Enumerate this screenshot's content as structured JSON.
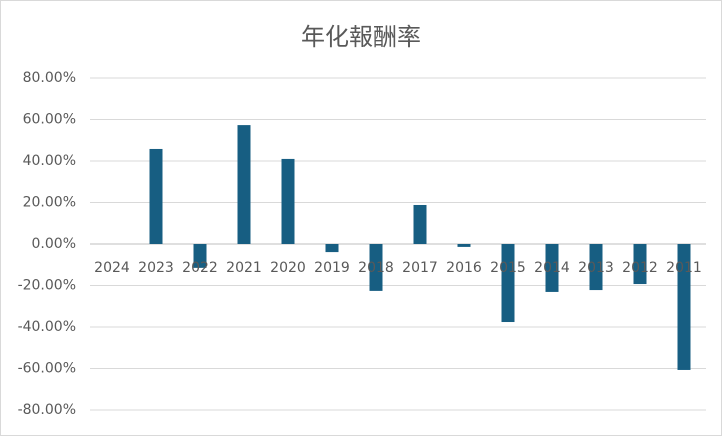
{
  "chart_data": {
    "type": "bar",
    "title": "年化報酬率",
    "categories": [
      "2024",
      "2023",
      "2022",
      "2021",
      "2020",
      "2019",
      "2018",
      "2017",
      "2016",
      "2015",
      "2014",
      "2013",
      "2012",
      "2011"
    ],
    "values": [
      0,
      45.8,
      -11.5,
      57.3,
      41,
      -3.9,
      -22.6,
      18.8,
      -1.4,
      -37.6,
      -23.1,
      -22.2,
      -19.3,
      -60.7
    ],
    "color": "#175e82",
    "ylim": [
      -80,
      80
    ],
    "yticks": [
      {
        "value": -80,
        "label": "-80.00%"
      },
      {
        "value": -60,
        "label": "-60.00%"
      },
      {
        "value": -40,
        "label": "-40.00%"
      },
      {
        "value": -20,
        "label": "-20.00%"
      },
      {
        "value": 0,
        "label": "0.00%"
      },
      {
        "value": 20,
        "label": "20.00%"
      },
      {
        "value": 40,
        "label": "40.00%"
      },
      {
        "value": 60,
        "label": "60.00%"
      },
      {
        "value": 80,
        "label": "80.00%"
      }
    ],
    "grid": true
  }
}
